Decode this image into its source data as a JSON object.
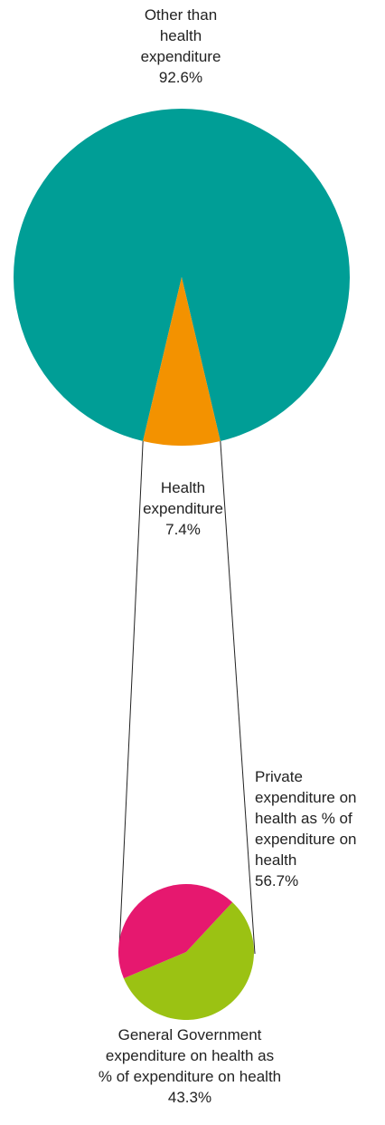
{
  "chart_data": [
    {
      "type": "pie",
      "role": "main",
      "slices": [
        {
          "name": "Other than health expenditure",
          "value": 92.6,
          "label_lines": [
            "Other than",
            "health",
            "expenditure",
            "92.6%"
          ],
          "color": "#009e96"
        },
        {
          "name": "Health expenditure",
          "value": 7.4,
          "label_lines": [
            "Health",
            "expenditure",
            "7.4%"
          ],
          "color": "#f39200"
        }
      ]
    },
    {
      "type": "pie",
      "role": "breakdown of Health expenditure",
      "slices": [
        {
          "name": "Private expenditure on health as % of expenditure on health",
          "value": 56.7,
          "label_lines": [
            "Private",
            "expenditure on",
            "health as % of",
            "expenditure on",
            "health",
            "56.7%"
          ],
          "color": "#9bc213"
        },
        {
          "name": "General Government expenditure on health as % of expenditure on health",
          "value": 43.3,
          "label_lines": [
            "General Government",
            "expenditure on health as",
            "% of expenditure on health",
            "43.3%"
          ],
          "color": "#e6186f"
        }
      ]
    }
  ]
}
